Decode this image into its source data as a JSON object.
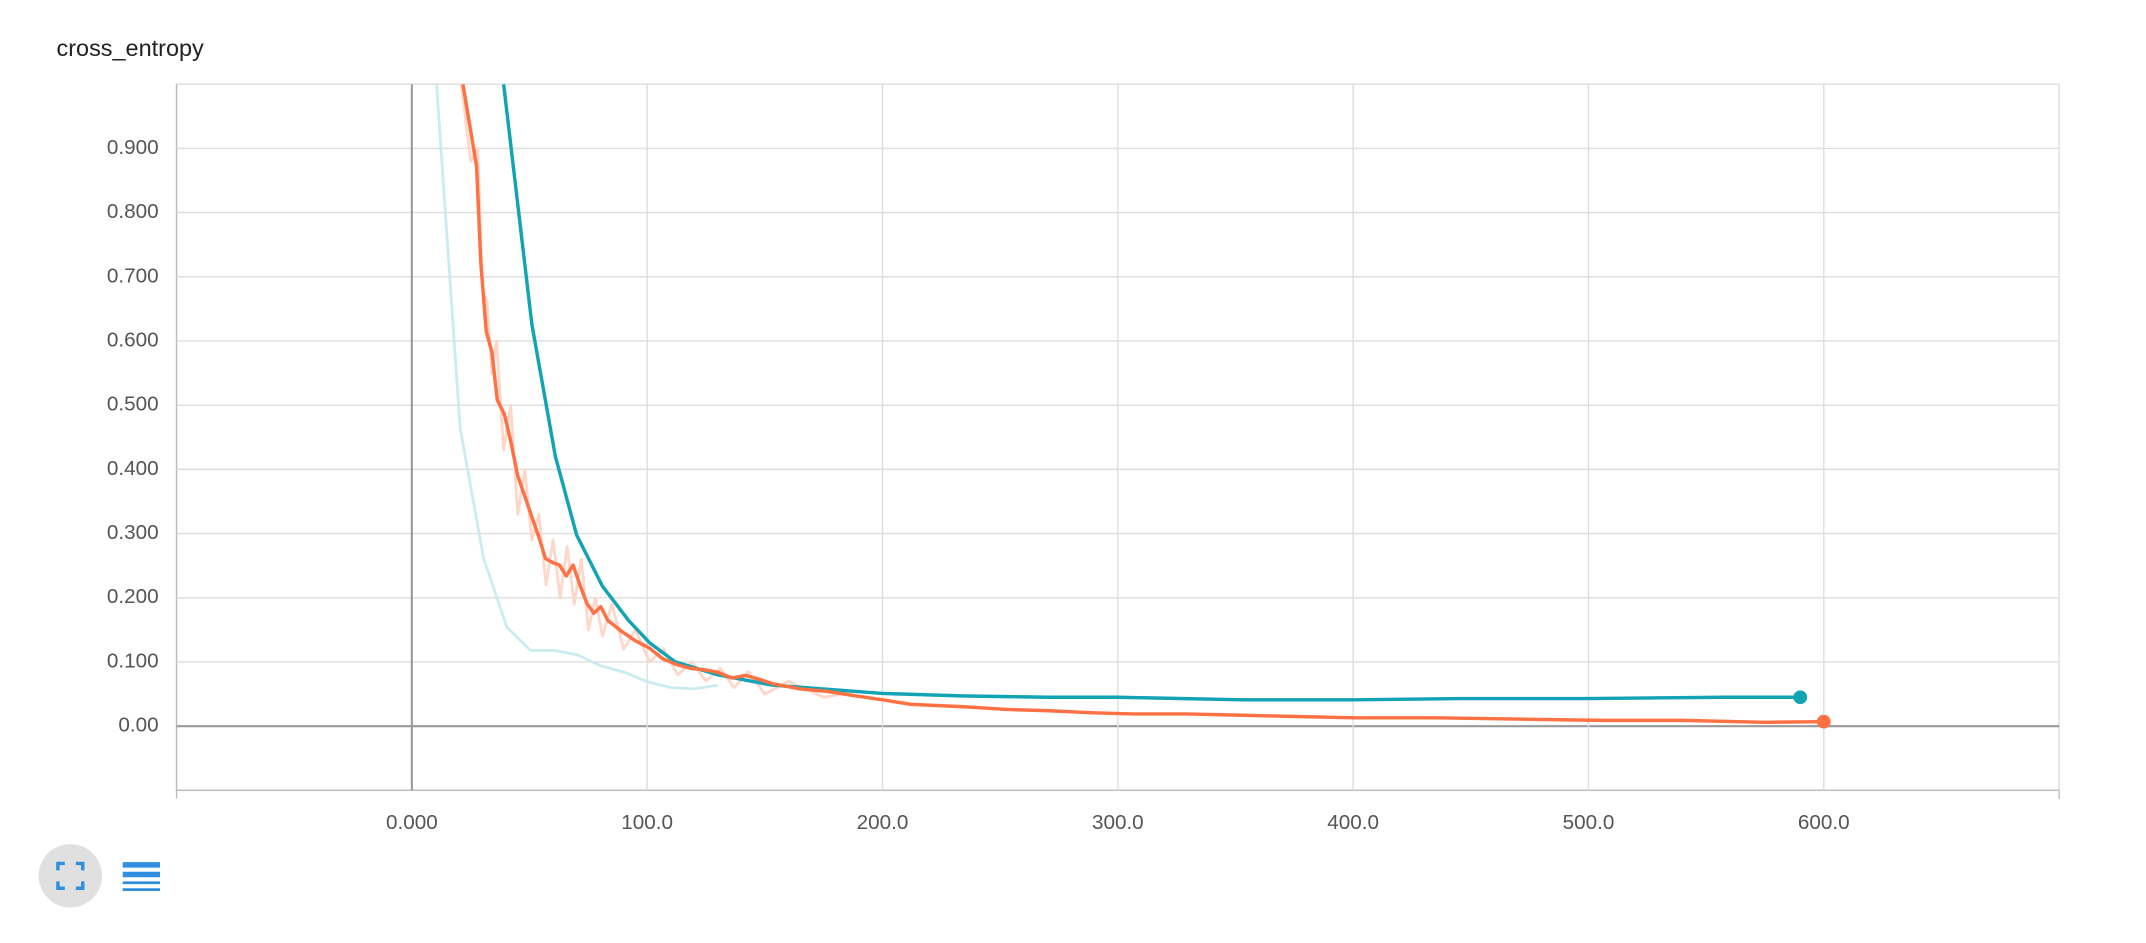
{
  "chart_data": {
    "type": "line",
    "title": "cross_entropy",
    "xlim": [
      -100,
      700
    ],
    "ylim": [
      -0.1,
      1.0
    ],
    "xticks": [
      {
        "value": 0,
        "label": "0.000"
      },
      {
        "value": 100,
        "label": "100.0"
      },
      {
        "value": 200,
        "label": "200.0"
      },
      {
        "value": 300,
        "label": "300.0"
      },
      {
        "value": 400,
        "label": "400.0"
      },
      {
        "value": 500,
        "label": "500.0"
      },
      {
        "value": 600,
        "label": "600.0"
      }
    ],
    "yticks": [
      {
        "value": 0,
        "label": "0.00"
      },
      {
        "value": 0.1,
        "label": "0.100"
      },
      {
        "value": 0.2,
        "label": "0.200"
      },
      {
        "value": 0.3,
        "label": "0.300"
      },
      {
        "value": 0.4,
        "label": "0.400"
      },
      {
        "value": 0.5,
        "label": "0.500"
      },
      {
        "value": 0.6,
        "label": "0.600"
      },
      {
        "value": 0.7,
        "label": "0.700"
      },
      {
        "value": 0.8,
        "label": "0.800"
      },
      {
        "value": 0.9,
        "label": "0.900"
      }
    ],
    "grid": true,
    "series": [
      {
        "color": "#c8ecef",
        "faded": true,
        "x": [
          10.5,
          20.5,
          30.5,
          40.4,
          50.4,
          60.4,
          70.3,
          80.3,
          90.3,
          100.2,
          110.2,
          120.1,
          130
        ],
        "values": [
          1.0,
          0.465,
          0.261,
          0.154,
          0.118,
          0.118,
          0.111,
          0.094,
          0.084,
          0.069,
          0.06,
          0.058,
          0.064
        ]
      },
      {
        "color": "#ffd6c8",
        "faded": true,
        "x": [
          21,
          25,
          28,
          30,
          32,
          34,
          36,
          39,
          42,
          45,
          48,
          51,
          54,
          57,
          60,
          63,
          66,
          69,
          72,
          75,
          78,
          81,
          85,
          90,
          95,
          101,
          107,
          113,
          119,
          125,
          131,
          137,
          143,
          150,
          160,
          175,
          190
        ],
        "values": [
          1.0,
          0.88,
          0.9,
          0.68,
          0.66,
          0.55,
          0.6,
          0.43,
          0.5,
          0.33,
          0.4,
          0.29,
          0.33,
          0.22,
          0.29,
          0.2,
          0.28,
          0.19,
          0.26,
          0.15,
          0.2,
          0.14,
          0.19,
          0.12,
          0.15,
          0.1,
          0.12,
          0.08,
          0.1,
          0.07,
          0.09,
          0.06,
          0.085,
          0.05,
          0.07,
          0.045,
          0.055
        ]
      },
      {
        "color": "#12a3b4",
        "end_marker": true,
        "x": [
          39,
          51,
          61,
          70,
          81,
          92,
          101,
          112,
          130,
          153,
          200,
          235,
          271,
          300,
          353,
          400,
          446,
          499,
          558,
          590
        ],
        "values": [
          1.0,
          0.626,
          0.42,
          0.298,
          0.218,
          0.165,
          0.13,
          0.1,
          0.08,
          0.064,
          0.051,
          0.047,
          0.045,
          0.045,
          0.041,
          0.041,
          0.043,
          0.043,
          0.045,
          0.045
        ]
      },
      {
        "color": "#ff7043",
        "end_marker": true,
        "x": [
          21.7,
          24.6,
          27.5,
          29.3,
          31.6,
          34,
          36.3,
          39.3,
          42,
          45,
          48,
          51,
          54,
          56.8,
          59.8,
          62.7,
          65.6,
          68.5,
          71.5,
          74.4,
          77.3,
          80.3,
          83.2,
          89,
          95,
          100.8,
          106.6,
          112.5,
          118.4,
          124,
          130,
          136,
          141.8,
          147.7,
          153.5,
          165,
          177,
          188.7,
          200,
          212,
          224,
          235.5,
          253,
          271,
          288,
          306,
          329,
          353,
          376,
          400,
          435,
          470,
          505,
          540,
          575,
          600
        ],
        "values": [
          1.0,
          0.936,
          0.872,
          0.722,
          0.615,
          0.583,
          0.508,
          0.486,
          0.444,
          0.39,
          0.358,
          0.326,
          0.294,
          0.261,
          0.255,
          0.251,
          0.234,
          0.251,
          0.219,
          0.191,
          0.176,
          0.186,
          0.165,
          0.148,
          0.133,
          0.122,
          0.105,
          0.096,
          0.09,
          0.088,
          0.084,
          0.075,
          0.079,
          0.073,
          0.066,
          0.058,
          0.054,
          0.047,
          0.041,
          0.034,
          0.032,
          0.03,
          0.026,
          0.024,
          0.021,
          0.019,
          0.019,
          0.017,
          0.015,
          0.013,
          0.013,
          0.011,
          0.009,
          0.009,
          0.006,
          0.007
        ]
      }
    ]
  }
}
